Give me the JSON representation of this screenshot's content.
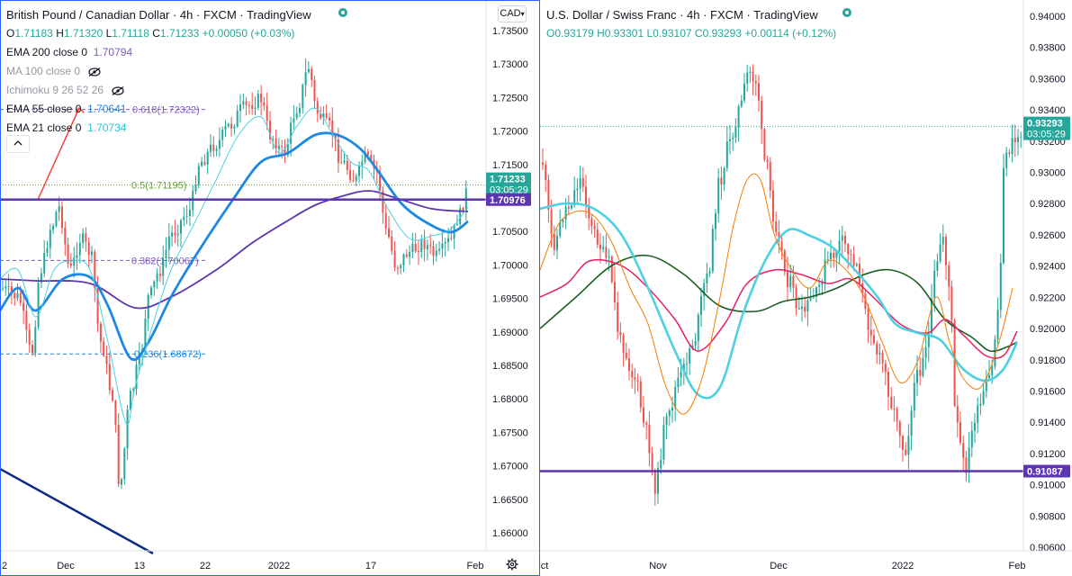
{
  "left": {
    "title": "British Pound / Canadian Dollar · 4h · FXCM · TradingView",
    "ohlc": {
      "o_label": "O",
      "o": "1.71183",
      "h_label": "H",
      "h": "1.71320",
      "l_label": "L",
      "l": "1.71118",
      "c_label": "C",
      "c": "1.71233",
      "change": "+0.00050 (+0.03%)"
    },
    "indicators": [
      {
        "label": "EMA 200 close 0",
        "value": "1.70794",
        "color": "#7e57c2"
      },
      {
        "label": "MA 100 close 0",
        "hidden": true
      },
      {
        "label": "Ichimoku 9 26 52 26",
        "hidden": true
      },
      {
        "label": "EMA 55 close 0",
        "value": "1.70641",
        "color": "#1e88e5"
      },
      {
        "label": "EMA 21 close 0",
        "value": "1.70734",
        "color": "#26c6da"
      }
    ],
    "currency_button": "CAD",
    "price_axis": [
      "1.73500",
      "1.73000",
      "1.72500",
      "1.72000",
      "1.71500",
      "1.71000",
      "1.70500",
      "1.70000",
      "1.69500",
      "1.69000",
      "1.68500",
      "1.68000",
      "1.67500",
      "1.67000",
      "1.66500",
      "1.66000"
    ],
    "time_axis": [
      "2",
      "Dec",
      "13",
      "22",
      "2022",
      "17",
      "Feb"
    ],
    "fib_labels": [
      {
        "text": "0.618(1.72322)",
        "color": "#7e57c2"
      },
      {
        "text": "0.5(1.71195)",
        "color": "#689f38"
      },
      {
        "text": "0.382(1.70067)",
        "color": "#7e57c2"
      },
      {
        "text": "0.236(1.68672)",
        "color": "#1e88e5"
      }
    ],
    "price_badges": [
      {
        "price": "1.71233",
        "timer": "03:05:29",
        "color": "#26a69a"
      },
      {
        "price": "1.70976",
        "color": "#5e35b1"
      }
    ],
    "chart_data": {
      "type": "candlestick",
      "symbol": "GBPCAD",
      "ylim": [
        1.6555,
        1.7385
      ],
      "fib_levels": [
        1.72322,
        1.71195,
        1.70067,
        1.68672
      ],
      "horizontal_level": 1.70976,
      "last_price": 1.71233
    }
  },
  "right": {
    "title": "U.S. Dollar / Swiss Franc · 4h · FXCM · TradingView",
    "ohlc": {
      "o_label": "O",
      "o": "0.93179",
      "h_label": "H",
      "h": "0.93301",
      "l_label": "L",
      "l": "0.93107",
      "c_label": "C",
      "c": "0.93293",
      "change": "+0.00114 (+0.12%)"
    },
    "price_axis": [
      "0.94000",
      "0.93800",
      "0.93600",
      "0.93400",
      "0.93200",
      "0.93000",
      "0.92800",
      "0.92600",
      "0.92400",
      "0.92200",
      "0.92000",
      "0.91800",
      "0.91600",
      "0.91400",
      "0.91200",
      "0.91000",
      "0.90800",
      "0.90600"
    ],
    "time_axis": [
      "ct",
      "Nov",
      "Dec",
      "2022",
      "Feb"
    ],
    "price_badges": [
      {
        "price": "0.93293",
        "timer": "03:05:29",
        "color": "#26a69a"
      },
      {
        "price": "0.91087",
        "color": "#5e35b1"
      }
    ],
    "chart_data": {
      "type": "candlestick",
      "symbol": "USDCHF",
      "ylim": [
        0.9055,
        0.9413
      ],
      "horizontal_level": 0.91087,
      "last_price": 0.93293
    }
  }
}
